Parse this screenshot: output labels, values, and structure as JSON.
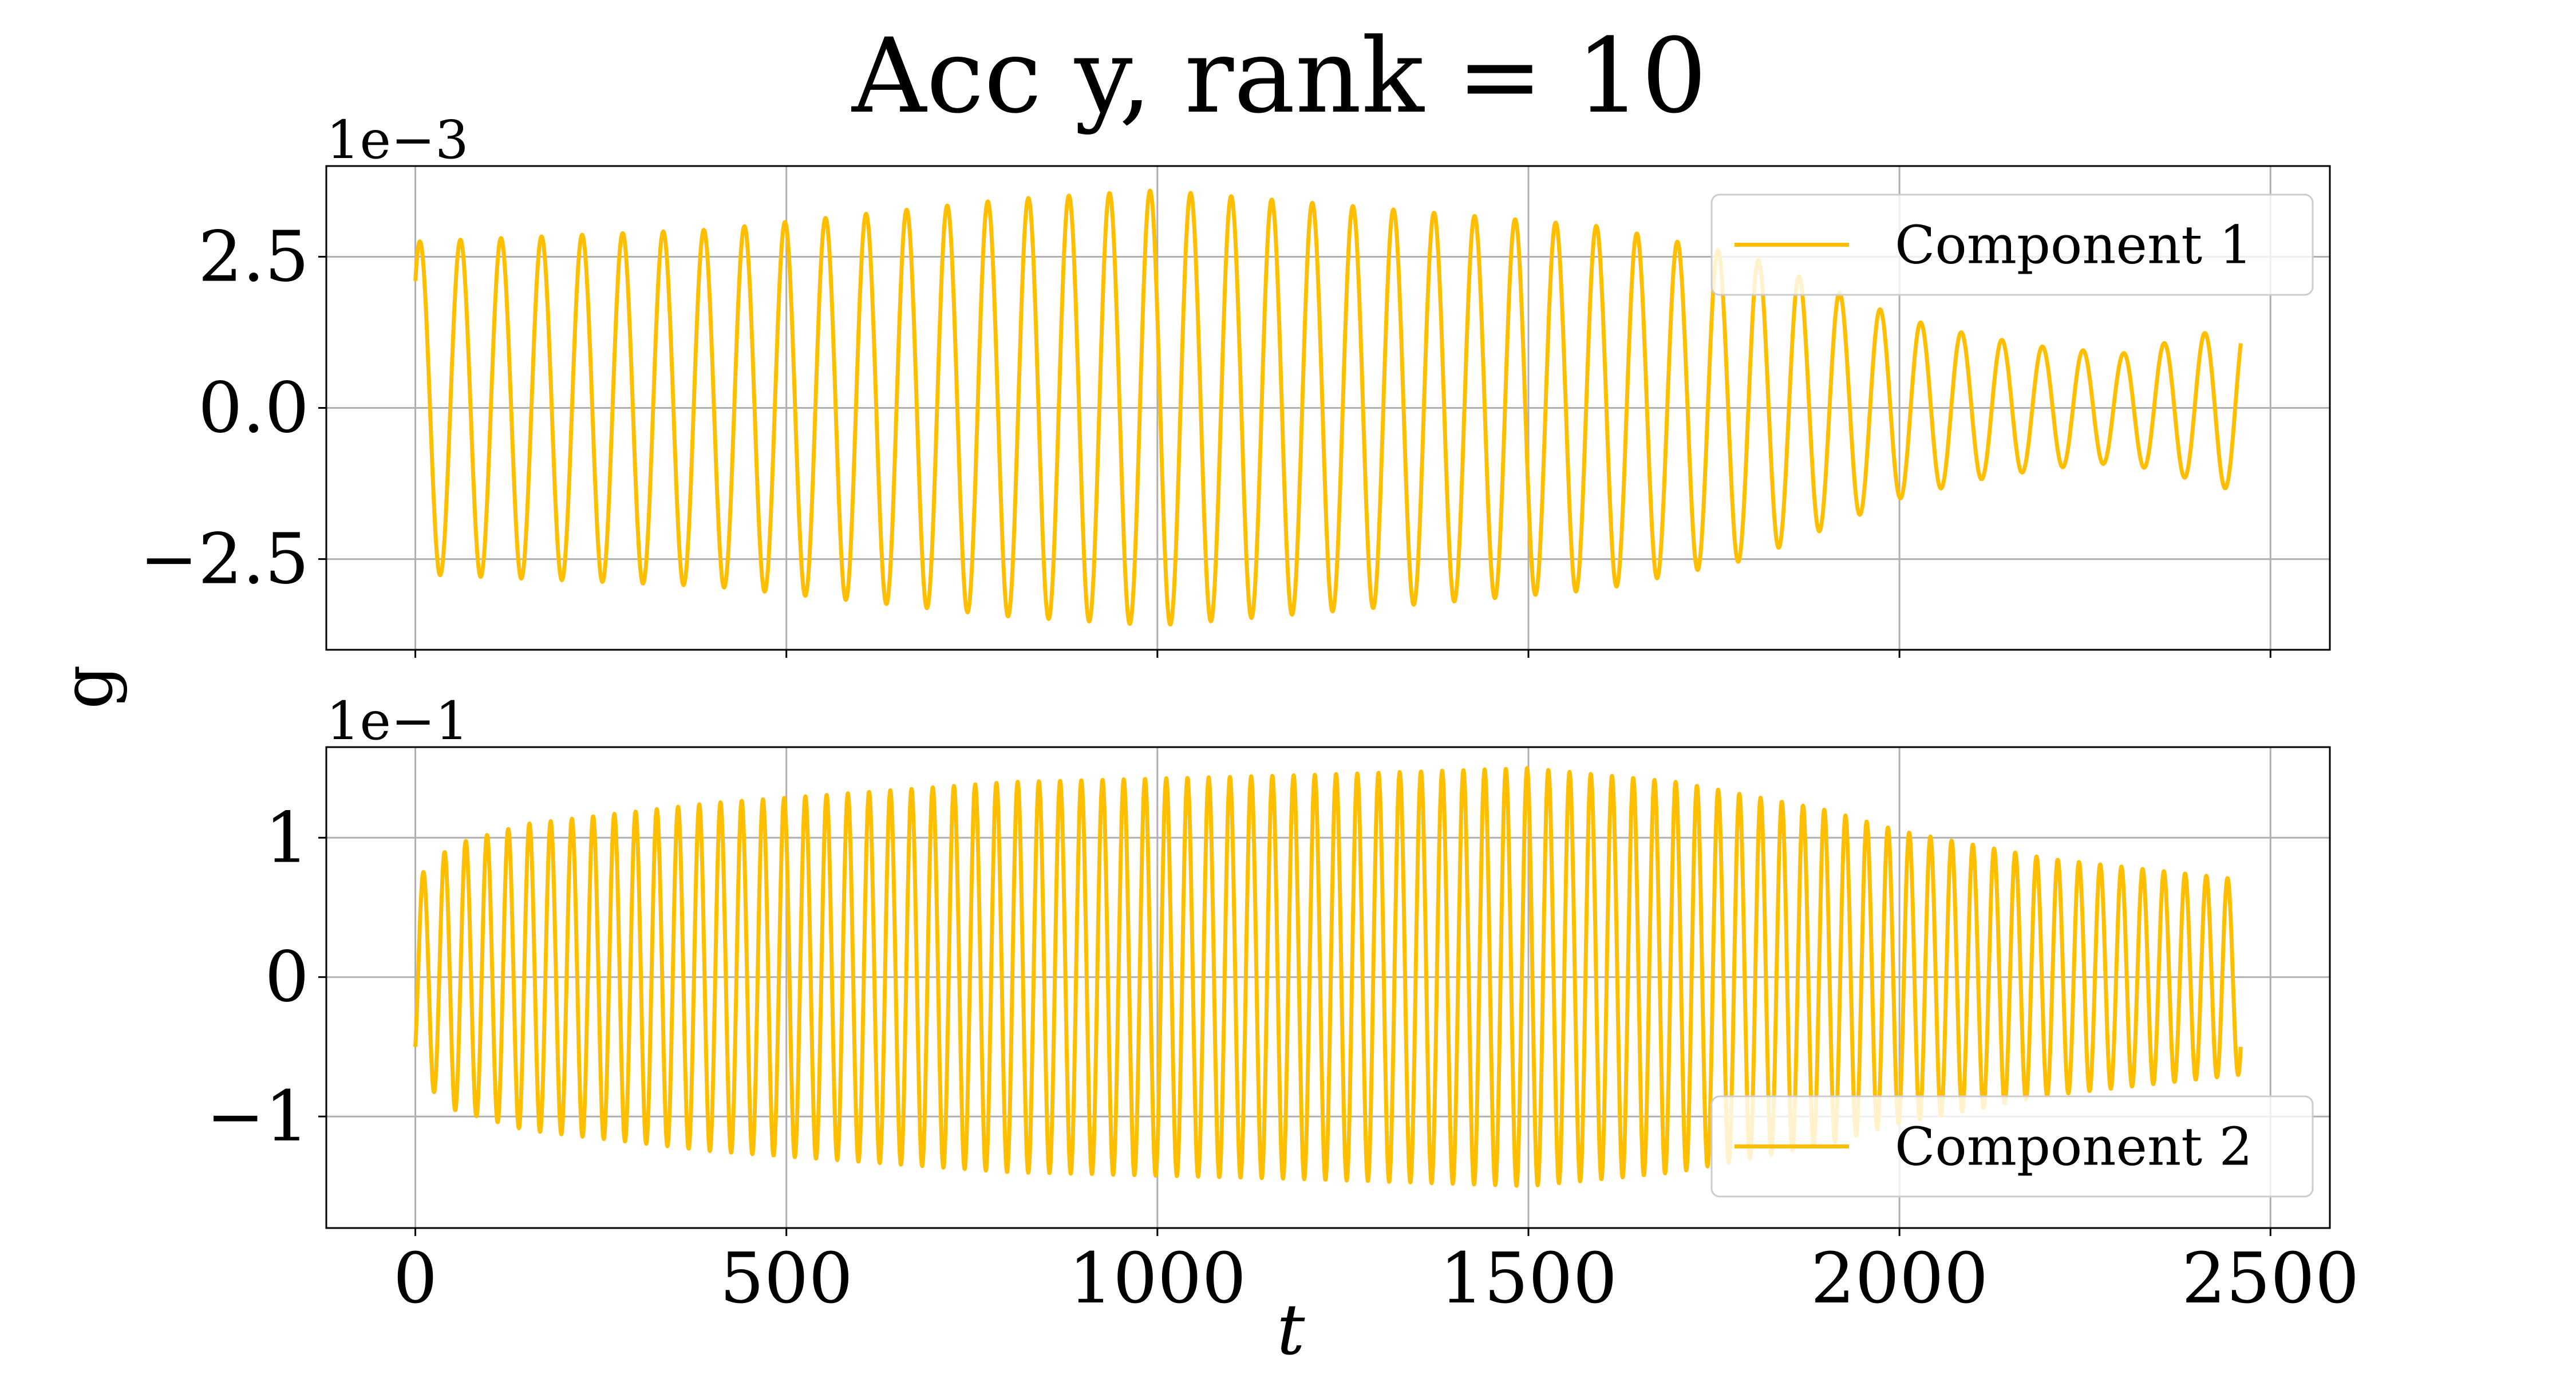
{
  "chart_data": {
    "type": "line",
    "title": "Acc y, rank = 10",
    "xlabel": "t",
    "ylabel": "g",
    "color": "#ffbf00",
    "xlim": [
      -120,
      2580
    ],
    "x_ticks": [
      0,
      500,
      1000,
      1500,
      2000,
      2500
    ],
    "x_tick_labels": [
      "0",
      "500",
      "1000",
      "1500",
      "2000",
      "2500"
    ],
    "x_range": [
      0,
      2460
    ],
    "grid": true,
    "subplots": [
      {
        "series_name": "Component 1",
        "offset_label": "1e−3",
        "ylim": [
          -4.0,
          4.0
        ],
        "y_ticks": [
          2.5,
          0.0,
          -2.5
        ],
        "y_tick_labels": [
          "2.5",
          "0.0",
          "−2.5"
        ],
        "legend_position": "upper right",
        "initial_value": 2.1,
        "cycles": 45,
        "amplitude_envelope": [
          [
            0,
            2.75
          ],
          [
            400,
            2.95
          ],
          [
            800,
            3.45
          ],
          [
            1000,
            3.6
          ],
          [
            1200,
            3.4
          ],
          [
            1600,
            3.0
          ],
          [
            1800,
            2.5
          ],
          [
            1900,
            2.0
          ],
          [
            2000,
            1.5
          ],
          [
            2100,
            1.2
          ],
          [
            2200,
            1.0
          ],
          [
            2300,
            0.9
          ],
          [
            2400,
            1.2
          ],
          [
            2460,
            1.4
          ]
        ]
      },
      {
        "series_name": "Component 2",
        "offset_label": "1e−1",
        "ylim": [
          -1.8,
          1.65
        ],
        "y_ticks": [
          1,
          0,
          -1
        ],
        "y_tick_labels": [
          "1",
          "0",
          "−1"
        ],
        "legend_position": "lower right",
        "initial_value": -0.5,
        "cycles": 86,
        "amplitude_envelope": [
          [
            0,
            0.7
          ],
          [
            50,
            0.95
          ],
          [
            150,
            1.1
          ],
          [
            400,
            1.25
          ],
          [
            800,
            1.4
          ],
          [
            1200,
            1.45
          ],
          [
            1500,
            1.5
          ],
          [
            1700,
            1.4
          ],
          [
            1900,
            1.2
          ],
          [
            2000,
            1.05
          ],
          [
            2200,
            0.85
          ],
          [
            2460,
            0.7
          ]
        ]
      }
    ]
  }
}
